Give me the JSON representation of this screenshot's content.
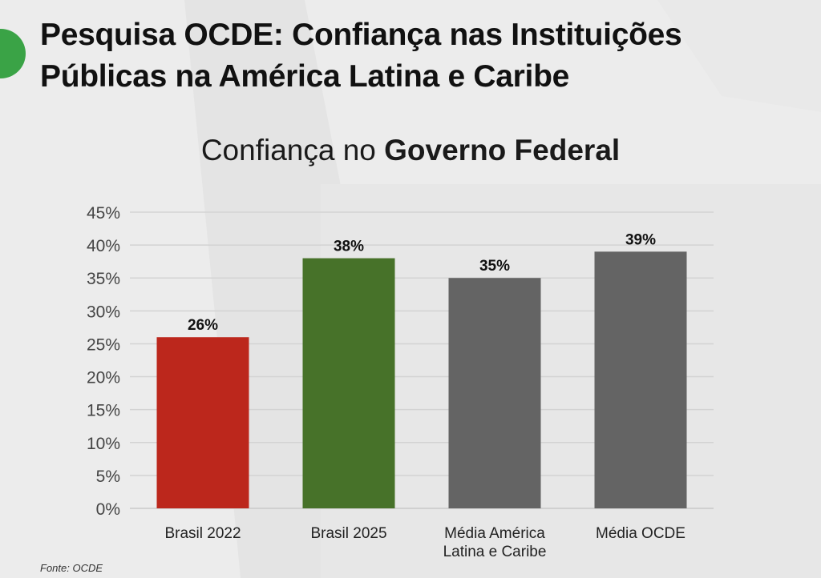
{
  "header": {
    "title": "Pesquisa OCDE: Confiança nas Instituições Públicas na América Latina e Caribe",
    "subtitle_regular": "Confiança no ",
    "subtitle_bold": "Governo Federal"
  },
  "source": "Fonte: OCDE",
  "chart_data": {
    "type": "bar",
    "title": "Confiança no Governo Federal",
    "categories": [
      "Brasil 2022",
      "Brasil 2025",
      "Média América Latina e Caribe",
      "Média OCDE"
    ],
    "category_lines": [
      [
        "Brasil 2022"
      ],
      [
        "Brasil 2025"
      ],
      [
        "Média América",
        "Latina e Caribe"
      ],
      [
        "Média OCDE"
      ]
    ],
    "values": [
      26,
      38,
      35,
      39
    ],
    "value_labels": [
      "26%",
      "38%",
      "35%",
      "39%"
    ],
    "bar_colors": [
      "#bc271c",
      "#477229",
      "#646464",
      "#646464"
    ],
    "ylim": [
      0,
      45
    ],
    "yticks": [
      0,
      5,
      10,
      15,
      20,
      25,
      30,
      35,
      40,
      45
    ],
    "ytick_labels": [
      "0%",
      "5%",
      "10%",
      "15%",
      "20%",
      "25%",
      "30%",
      "35%",
      "40%",
      "45%"
    ],
    "xlabel": "",
    "ylabel": "",
    "grid": true,
    "legend": "none"
  }
}
